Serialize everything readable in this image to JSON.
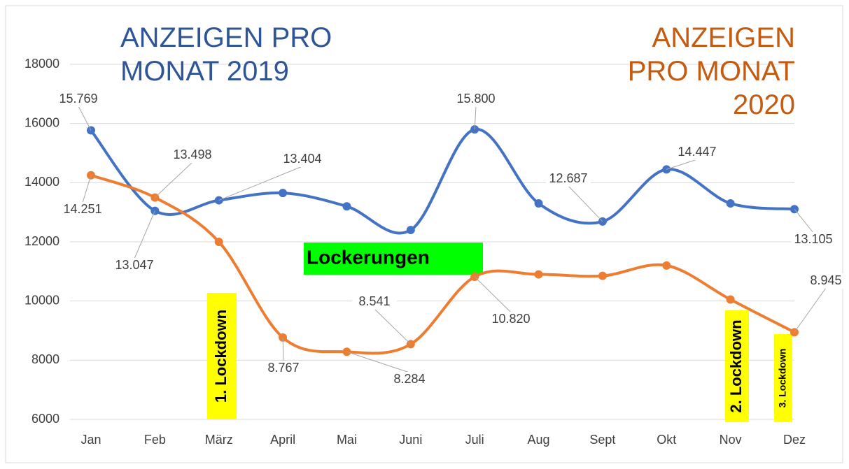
{
  "chart_data": {
    "type": "line",
    "categories": [
      "Jan",
      "Feb",
      "März",
      "April",
      "Mai",
      "Juni",
      "Juli",
      "Aug",
      "Sept",
      "Okt",
      "Nov",
      "Dez"
    ],
    "series": [
      {
        "name": "ANZEIGEN PRO MONAT 2019",
        "color": "#4472c4",
        "title_color": "#2f5597",
        "values": [
          15769,
          13047,
          13404,
          13650,
          13200,
          12400,
          15800,
          13300,
          12687,
          14447,
          13300,
          13105
        ],
        "value_labels": [
          "15.769",
          "13.047",
          "13.404",
          null,
          null,
          null,
          "15.800",
          null,
          "12.687",
          "14.447",
          null,
          "13.105"
        ]
      },
      {
        "name": "ANZEIGEN PRO MONAT 2020",
        "color": "#ed7d31",
        "title_color": "#c55a11",
        "values": [
          14251,
          13498,
          12000,
          8767,
          8284,
          8541,
          10820,
          10900,
          10850,
          11200,
          10050,
          8945
        ],
        "value_labels": [
          "14.251",
          "13.498",
          null,
          "8.767",
          "8.284",
          "8.541",
          "10.820",
          null,
          null,
          null,
          null,
          "8.945"
        ]
      }
    ],
    "ylim": [
      6000,
      18000
    ],
    "yticks": [
      6000,
      8000,
      10000,
      12000,
      14000,
      16000,
      18000
    ],
    "grid": true,
    "annotations": [
      "Lockerungen",
      "1. Lockdown",
      "2. Lockdown",
      "3. Lockdown"
    ]
  }
}
